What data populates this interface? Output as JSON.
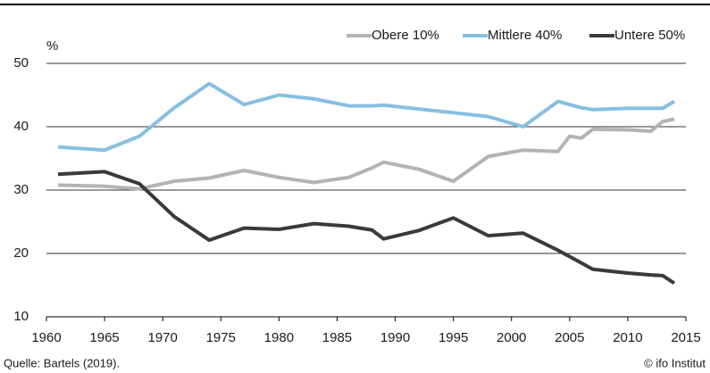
{
  "chart_data": {
    "type": "line",
    "y_label": "%",
    "source": "Quelle: Bartels (2019).",
    "credit": "© ifo Institut",
    "x": [
      1961,
      1965,
      1968,
      1971,
      1974,
      1977,
      1980,
      1983,
      1986,
      1988,
      1989,
      1992,
      1995,
      1998,
      2001,
      2004,
      2005,
      2006,
      2007,
      2010,
      2012,
      2013,
      2014
    ],
    "series": [
      {
        "name": "Obere 10%",
        "color": "#b3b3b3",
        "values": [
          30.8,
          30.6,
          30.2,
          31.4,
          31.9,
          33.1,
          32,
          31.2,
          32,
          33.5,
          34.4,
          33.3,
          31.4,
          35.3,
          36.3,
          36.1,
          38.5,
          38.2,
          39.6,
          39.5,
          39.3,
          40.8,
          41.2
        ]
      },
      {
        "name": "Mittlere 40%",
        "color": "#86bfe0",
        "values": [
          36.8,
          36.3,
          38.5,
          43,
          46.8,
          43.5,
          45,
          44.4,
          43.3,
          43.3,
          43.4,
          42.8,
          42.2,
          41.6,
          40,
          44,
          43.5,
          43,
          42.7,
          42.9,
          42.9,
          42.9,
          44
        ]
      },
      {
        "name": "Untere 50%",
        "color": "#3a3a3a",
        "values": [
          32.5,
          32.9,
          31,
          25.8,
          22.1,
          24,
          23.8,
          24.7,
          24.3,
          23.7,
          22.3,
          23.6,
          25.6,
          22.8,
          23.2,
          20.5,
          19.5,
          18.5,
          17.5,
          16.9,
          16.6,
          16.5,
          15.3
        ]
      }
    ],
    "xlim": [
      1960,
      2015
    ],
    "xticks": [
      1960,
      1965,
      1970,
      1975,
      1980,
      1985,
      1990,
      1995,
      2000,
      2005,
      2010,
      2015
    ],
    "ylim": [
      10,
      50
    ],
    "yticks": [
      10,
      20,
      30,
      40,
      50
    ],
    "grid": true,
    "legend": "top-right"
  }
}
